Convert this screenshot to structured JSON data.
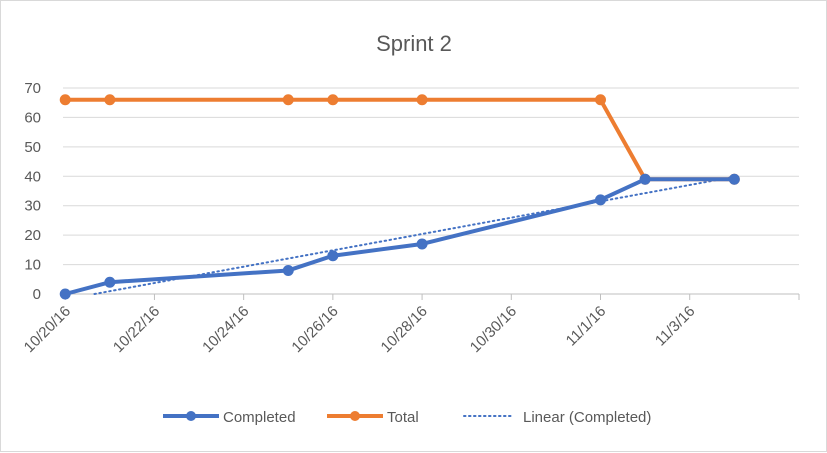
{
  "chart_data": {
    "type": "line",
    "title": "Sprint 2",
    "xlabel": "",
    "ylabel": "",
    "x": [
      "10/20/16",
      "10/21/16",
      "10/25/16",
      "10/26/16",
      "10/28/16",
      "11/1/16",
      "11/2/16",
      "11/4/16"
    ],
    "x_ticks": [
      "10/20/16",
      "10/22/16",
      "10/24/16",
      "10/26/16",
      "10/28/16",
      "10/30/16",
      "11/1/16",
      "11/3/16"
    ],
    "xlim": [
      "10/20/16",
      "11/4/16"
    ],
    "ylim": [
      0,
      70
    ],
    "y_ticks": [
      0,
      10,
      20,
      30,
      40,
      50,
      60,
      70
    ],
    "grid": true,
    "legend_position": "bottom",
    "series": [
      {
        "name": "Completed",
        "values": [
          0,
          4,
          8,
          13,
          17,
          32,
          39,
          39
        ],
        "color": "#4472C4",
        "marker": "circle"
      },
      {
        "name": "Total",
        "values": [
          66,
          66,
          66,
          66,
          66,
          66,
          39,
          39
        ],
        "color": "#ED7D31",
        "marker": "circle"
      }
    ],
    "trendline": {
      "name": "Linear  (Completed)",
      "of": "Completed",
      "type": "linear",
      "style": "dotted",
      "color": "#4472C4"
    }
  }
}
